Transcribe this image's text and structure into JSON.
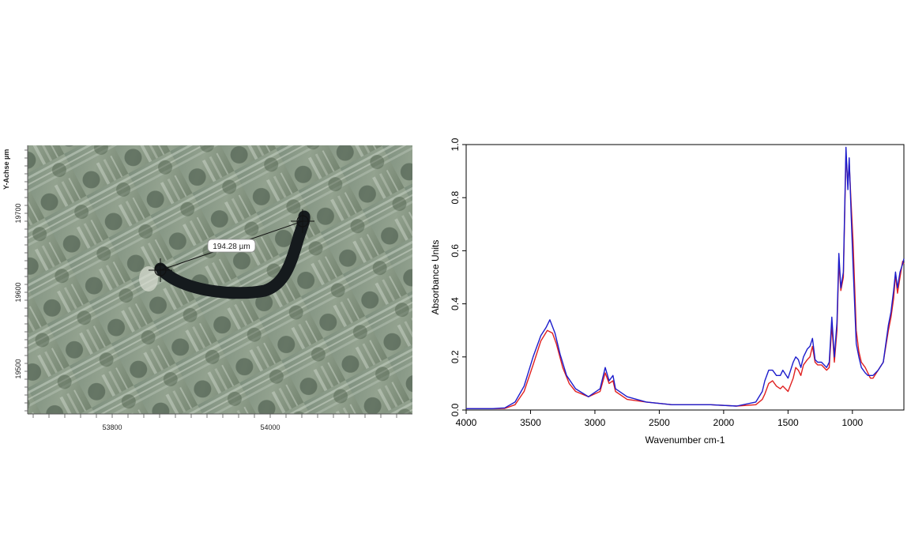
{
  "microscope": {
    "y_axis_label": "Y-Achse µm",
    "y_ticks": [
      19700,
      19600,
      19500
    ],
    "x_ticks": [
      53800,
      54000
    ],
    "measurement_label": "194.28 µm"
  },
  "chart_data": {
    "type": "line",
    "xlabel": "Wavenumber cm-1",
    "ylabel": "Absorbance Units",
    "xlim": [
      4000,
      600
    ],
    "ylim": [
      0,
      1.0
    ],
    "x_reversed": true,
    "x_ticks": [
      4000,
      3500,
      3000,
      2500,
      2000,
      1500,
      1000
    ],
    "y_ticks": [
      0.0,
      0.2,
      0.4,
      0.6,
      0.8,
      1.0
    ],
    "grid": false,
    "series": [
      {
        "color": "#e02020",
        "points": [
          [
            4000,
            0.005
          ],
          [
            3800,
            0.005
          ],
          [
            3700,
            0.006
          ],
          [
            3620,
            0.02
          ],
          [
            3550,
            0.07
          ],
          [
            3480,
            0.17
          ],
          [
            3420,
            0.26
          ],
          [
            3370,
            0.3
          ],
          [
            3330,
            0.29
          ],
          [
            3300,
            0.25
          ],
          [
            3250,
            0.16
          ],
          [
            3200,
            0.1
          ],
          [
            3150,
            0.07
          ],
          [
            3050,
            0.05
          ],
          [
            2960,
            0.07
          ],
          [
            2920,
            0.14
          ],
          [
            2890,
            0.1
          ],
          [
            2860,
            0.11
          ],
          [
            2840,
            0.07
          ],
          [
            2750,
            0.04
          ],
          [
            2600,
            0.03
          ],
          [
            2400,
            0.02
          ],
          [
            2100,
            0.02
          ],
          [
            1900,
            0.015
          ],
          [
            1750,
            0.02
          ],
          [
            1700,
            0.04
          ],
          [
            1680,
            0.06
          ],
          [
            1650,
            0.1
          ],
          [
            1620,
            0.11
          ],
          [
            1590,
            0.09
          ],
          [
            1560,
            0.08
          ],
          [
            1540,
            0.09
          ],
          [
            1500,
            0.07
          ],
          [
            1460,
            0.12
          ],
          [
            1440,
            0.16
          ],
          [
            1420,
            0.15
          ],
          [
            1400,
            0.13
          ],
          [
            1380,
            0.17
          ],
          [
            1350,
            0.19
          ],
          [
            1330,
            0.2
          ],
          [
            1310,
            0.24
          ],
          [
            1290,
            0.18
          ],
          [
            1270,
            0.17
          ],
          [
            1240,
            0.17
          ],
          [
            1200,
            0.15
          ],
          [
            1180,
            0.16
          ],
          [
            1160,
            0.32
          ],
          [
            1140,
            0.18
          ],
          [
            1120,
            0.3
          ],
          [
            1105,
            0.56
          ],
          [
            1090,
            0.45
          ],
          [
            1070,
            0.5
          ],
          [
            1050,
            0.96
          ],
          [
            1035,
            0.85
          ],
          [
            1025,
            0.93
          ],
          [
            1010,
            0.78
          ],
          [
            995,
            0.64
          ],
          [
            970,
            0.3
          ],
          [
            950,
            0.22
          ],
          [
            930,
            0.18
          ],
          [
            900,
            0.16
          ],
          [
            880,
            0.14
          ],
          [
            860,
            0.12
          ],
          [
            840,
            0.12
          ],
          [
            800,
            0.15
          ],
          [
            760,
            0.18
          ],
          [
            720,
            0.3
          ],
          [
            700,
            0.35
          ],
          [
            680,
            0.42
          ],
          [
            665,
            0.51
          ],
          [
            650,
            0.44
          ],
          [
            630,
            0.5
          ],
          [
            610,
            0.56
          ],
          [
            600,
            0.55
          ]
        ]
      },
      {
        "color": "#1c1ccc",
        "points": [
          [
            4000,
            0.005
          ],
          [
            3800,
            0.005
          ],
          [
            3700,
            0.008
          ],
          [
            3620,
            0.03
          ],
          [
            3550,
            0.09
          ],
          [
            3480,
            0.2
          ],
          [
            3420,
            0.28
          ],
          [
            3380,
            0.31
          ],
          [
            3350,
            0.34
          ],
          [
            3310,
            0.29
          ],
          [
            3270,
            0.21
          ],
          [
            3220,
            0.13
          ],
          [
            3150,
            0.08
          ],
          [
            3050,
            0.05
          ],
          [
            2960,
            0.08
          ],
          [
            2920,
            0.16
          ],
          [
            2890,
            0.11
          ],
          [
            2860,
            0.13
          ],
          [
            2840,
            0.08
          ],
          [
            2750,
            0.05
          ],
          [
            2600,
            0.03
          ],
          [
            2400,
            0.02
          ],
          [
            2100,
            0.02
          ],
          [
            1900,
            0.015
          ],
          [
            1750,
            0.03
          ],
          [
            1700,
            0.07
          ],
          [
            1680,
            0.11
          ],
          [
            1650,
            0.15
          ],
          [
            1620,
            0.15
          ],
          [
            1590,
            0.13
          ],
          [
            1560,
            0.13
          ],
          [
            1540,
            0.15
          ],
          [
            1500,
            0.12
          ],
          [
            1460,
            0.18
          ],
          [
            1440,
            0.2
          ],
          [
            1420,
            0.19
          ],
          [
            1400,
            0.16
          ],
          [
            1380,
            0.2
          ],
          [
            1350,
            0.23
          ],
          [
            1330,
            0.24
          ],
          [
            1310,
            0.27
          ],
          [
            1290,
            0.19
          ],
          [
            1270,
            0.18
          ],
          [
            1240,
            0.18
          ],
          [
            1200,
            0.16
          ],
          [
            1180,
            0.18
          ],
          [
            1160,
            0.35
          ],
          [
            1140,
            0.2
          ],
          [
            1120,
            0.33
          ],
          [
            1105,
            0.59
          ],
          [
            1090,
            0.46
          ],
          [
            1070,
            0.52
          ],
          [
            1050,
            0.99
          ],
          [
            1035,
            0.83
          ],
          [
            1025,
            0.95
          ],
          [
            1010,
            0.74
          ],
          [
            995,
            0.55
          ],
          [
            970,
            0.25
          ],
          [
            950,
            0.2
          ],
          [
            930,
            0.16
          ],
          [
            900,
            0.14
          ],
          [
            880,
            0.13
          ],
          [
            860,
            0.13
          ],
          [
            840,
            0.13
          ],
          [
            800,
            0.15
          ],
          [
            760,
            0.18
          ],
          [
            720,
            0.32
          ],
          [
            700,
            0.37
          ],
          [
            680,
            0.45
          ],
          [
            665,
            0.52
          ],
          [
            650,
            0.46
          ],
          [
            630,
            0.52
          ],
          [
            610,
            0.55
          ],
          [
            600,
            0.57
          ]
        ]
      }
    ]
  }
}
